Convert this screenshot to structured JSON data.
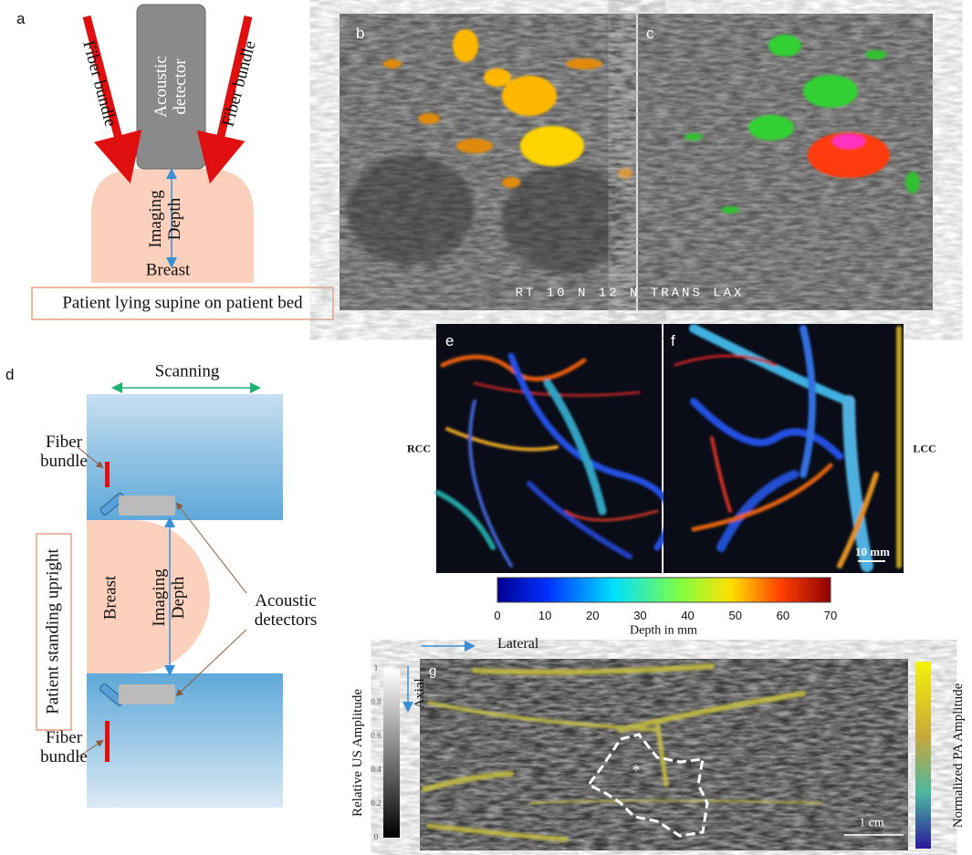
{
  "panels": {
    "a": {
      "label": "a",
      "fiber_left": "Fiber bundle",
      "fiber_right": "Fiber bundle",
      "detector": "Acoustic detector",
      "depth": "Imaging Depth",
      "breast": "Breast",
      "caption": "Patient lying supine on patient bed"
    },
    "b": {
      "label": "b",
      "overlay": "RT 10 N 12 N TRANS LAX"
    },
    "c": {
      "label": "c"
    },
    "d": {
      "label": "d",
      "scanning": "Scanning",
      "fiber_top": "Fiber bundle",
      "fiber_bottom": "Fiber bundle",
      "patient": "Patient standing upright",
      "breast": "Breast",
      "depth": "Imaging Depth",
      "detectors": "Acoustic detectors"
    },
    "e": {
      "label": "e",
      "side": "RCC"
    },
    "f": {
      "label": "f",
      "side": "LCC",
      "scale": "10 mm"
    },
    "colorbar": {
      "ticks": [
        0,
        10,
        20,
        30,
        40,
        50,
        60,
        70
      ],
      "title": "Depth in mm"
    },
    "g": {
      "label": "g",
      "lateral": "Lateral",
      "axial": "Axial",
      "us_axis": "Relative US Amplitude",
      "us_ticks": [
        "1",
        "0.8",
        "0.6",
        "0.4",
        "0.2",
        "0"
      ],
      "pa_axis": "Normalized PA Amplitude",
      "scale": "1 cm",
      "asterisk": "*"
    }
  }
}
